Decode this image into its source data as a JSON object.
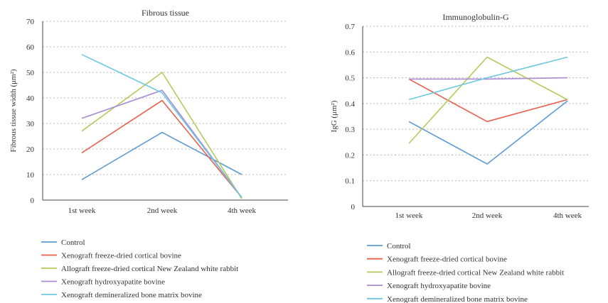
{
  "chart_data": [
    {
      "type": "line",
      "title": "Fibrous tissue",
      "xlabel": "",
      "ylabel": "Fibrous tissue width (μm²)",
      "categories": [
        "1st week",
        "2nd week",
        "4th week"
      ],
      "ylim": [
        0,
        70
      ],
      "yticks": [
        "0",
        "10",
        "20",
        "30",
        "40",
        "50",
        "60",
        "70"
      ],
      "grid": true,
      "legend_position": "bottom",
      "series": [
        {
          "name": "Control",
          "color": "#5b9bd5",
          "values": [
            8,
            26.5,
            10
          ]
        },
        {
          "name": "Xenograft freeze-dried cortical bovine",
          "color": "#e8604c",
          "values": [
            18.5,
            39,
            1
          ]
        },
        {
          "name": "Allograft freeze-dried cortical New Zealand white rabbit",
          "color": "#b5c95a",
          "values": [
            27,
            50,
            0.5
          ]
        },
        {
          "name": "Xenograft hydroxyapatite bovine",
          "color": "#a98bd6",
          "values": [
            32,
            43,
            1
          ]
        },
        {
          "name": "Xenograft demineralized bone matrix bovine",
          "color": "#6cc8e0",
          "values": [
            57,
            42,
            1
          ]
        }
      ]
    },
    {
      "type": "line",
      "title": "Immunoglobulin-G",
      "xlabel": "",
      "ylabel": "IgG (μm²)",
      "categories": [
        "1st week",
        "2nd week",
        "4th week"
      ],
      "ylim": [
        0,
        0.7
      ],
      "yticks": [
        "0",
        "0.1",
        "0.2",
        "0.3",
        "0.4",
        "0.5",
        "0.6",
        "0.7"
      ],
      "grid": true,
      "legend_position": "bottom",
      "series": [
        {
          "name": "Control",
          "color": "#5b9bd5",
          "values": [
            0.33,
            0.165,
            0.41
          ]
        },
        {
          "name": "Xenograft freeze-dried cortical bovine",
          "color": "#e8604c",
          "values": [
            0.495,
            0.33,
            0.415
          ]
        },
        {
          "name": "Allograft freeze-dried cortical New Zealand white rabbit",
          "color": "#b5c95a",
          "values": [
            0.245,
            0.58,
            0.415
          ]
        },
        {
          "name": "Xenograft hydroxyapatite bovine",
          "color": "#a98bd6",
          "values": [
            0.495,
            0.495,
            0.5
          ]
        },
        {
          "name": "Xenograft demineralized bone matrix bovine",
          "color": "#6cc8e0",
          "values": [
            0.415,
            0.5,
            0.58
          ]
        }
      ]
    }
  ]
}
